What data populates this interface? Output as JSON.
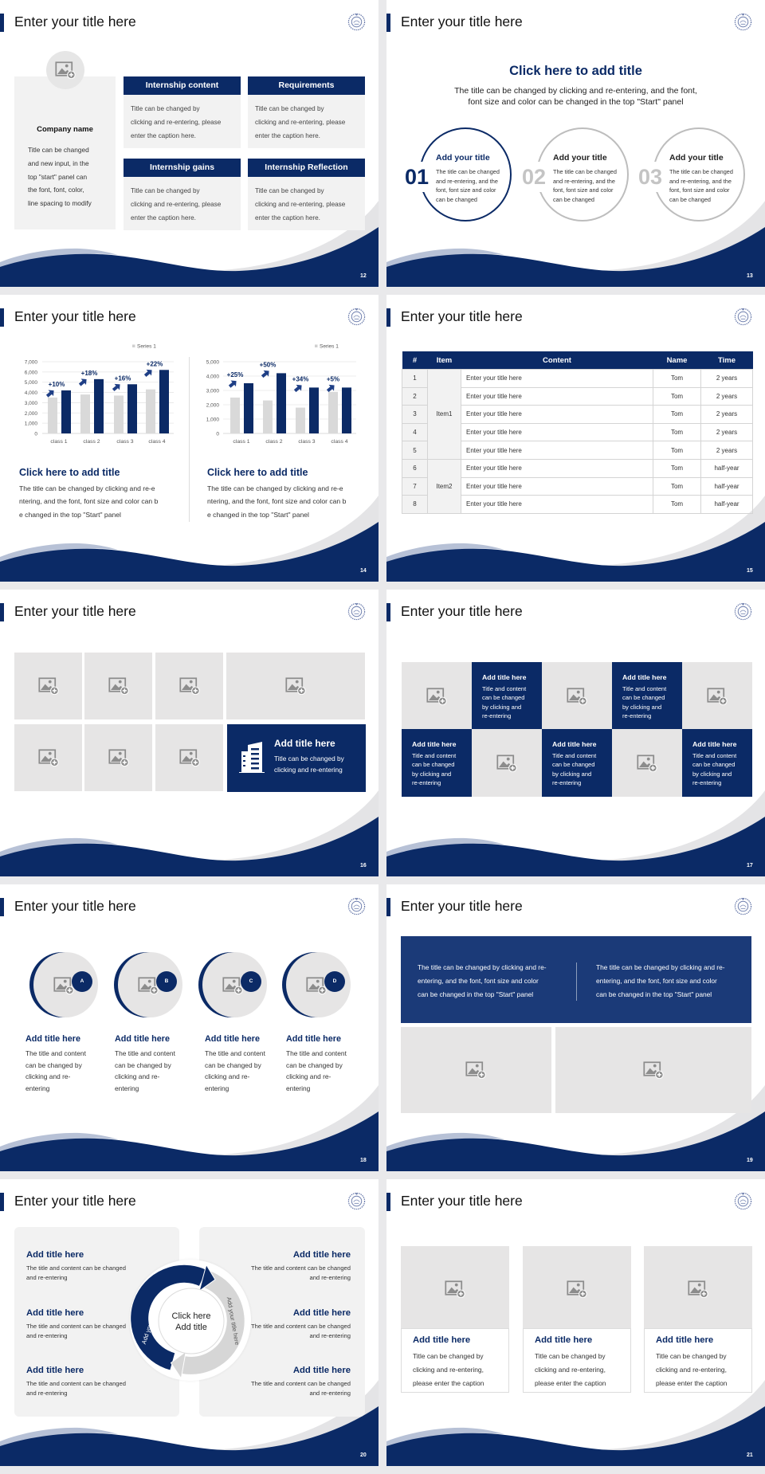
{
  "colors": {
    "navy": "#0b2a66",
    "panel": "#f2f2f2",
    "image_placeholder": "#e6e5e5",
    "band_blue": "#1b3a78",
    "step_gray": "#bdbdbd"
  },
  "icons": {
    "logo": "school-seal-logo",
    "image": "image-add-icon",
    "feature": "building-icon",
    "growth": "arrow-up-right-icon"
  },
  "slides": {
    "s12": {
      "title": "Enter your title here",
      "page": "12",
      "company_name": "Company name",
      "company_body": [
        "Title can be changed",
        "and new input, in the",
        "top \"start\" panel can",
        "the font, font, color,",
        "line spacing to modify"
      ],
      "cards": [
        {
          "header": "Internship content",
          "body": [
            "Title can be changed by",
            "clicking and re-entering, please",
            "enter the caption here."
          ]
        },
        {
          "header": "Requirements",
          "body": [
            "Title can be changed by",
            "clicking and re-entering, please",
            "enter the caption here."
          ]
        },
        {
          "header": "Internship gains",
          "body": [
            "Title can be changed by",
            "clicking and re-entering, please",
            "enter the caption here."
          ]
        },
        {
          "header": "Internship Reflection",
          "body": [
            "Title can be changed by",
            "clicking and re-entering, please",
            "enter the caption here."
          ]
        }
      ]
    },
    "s13": {
      "title": "Enter your title here",
      "page": "13",
      "heading": "Click here to add title",
      "subtitle": [
        "The title can be changed by clicking and re-entering, and the font,",
        "font size and color can be changed in the top \"Start\" panel"
      ],
      "items": [
        {
          "number": "01",
          "title": "Add your title",
          "body": [
            "The title can be changed",
            "and re-entering, and the",
            "font, font size and color",
            "can be changed"
          ]
        },
        {
          "number": "02",
          "title": "Add your title",
          "body": [
            "The title can be changed",
            "and re-entering, and the",
            "font, font size and color",
            "can be changed"
          ]
        },
        {
          "number": "03",
          "title": "Add your title",
          "body": [
            "The title can be changed",
            "and re-entering, and the",
            "font, font size and color",
            "can be changed"
          ]
        }
      ]
    },
    "s14": {
      "title": "Enter your title here",
      "page": "14",
      "panels": [
        {
          "heading": "Click here to add title",
          "body": [
            "The title can be changed by clicking and re-e",
            "ntering, and the font, font size and color can b",
            "e changed in the top \"Start\" panel"
          ]
        },
        {
          "heading": "Click here to add title",
          "body": [
            "The title can be changed by clicking and re-e",
            "ntering, and the font, font size and color can b",
            "e changed in the top \"Start\" panel"
          ]
        }
      ]
    },
    "s15": {
      "title": "Enter your title here",
      "page": "15",
      "table": {
        "headers": [
          "#",
          "Item",
          "Content",
          "Name",
          "Time"
        ],
        "groups": [
          {
            "item": "Item1",
            "rows": [
              {
                "no": "1",
                "content": "Enter your title here",
                "name": "Tom",
                "time": "2 years"
              },
              {
                "no": "2",
                "content": "Enter your title here",
                "name": "Tom",
                "time": "2 years"
              },
              {
                "no": "3",
                "content": "Enter your title here",
                "name": "Tom",
                "time": "2 years"
              },
              {
                "no": "4",
                "content": "Enter your title here",
                "name": "Tom",
                "time": "2 years"
              },
              {
                "no": "5",
                "content": "Enter your title here",
                "name": "Tom",
                "time": "2 years"
              }
            ]
          },
          {
            "item": "Item2",
            "rows": [
              {
                "no": "6",
                "content": "Enter your title here",
                "name": "Tom",
                "time": "half-year"
              },
              {
                "no": "7",
                "content": "Enter your title here",
                "name": "Tom",
                "time": "half-year"
              },
              {
                "no": "8",
                "content": "Enter your title here",
                "name": "Tom",
                "time": "half-year"
              }
            ]
          }
        ]
      }
    },
    "s16": {
      "title": "Enter your title here",
      "page": "16",
      "feature": {
        "title": "Add title here",
        "body": [
          "Title can be changed by",
          "clicking and re-entering"
        ]
      }
    },
    "s17": {
      "title": "Enter your title here",
      "page": "17",
      "cells": [
        {
          "title": "Add title here",
          "body": [
            "Title and content",
            "can be changed",
            "by clicking and",
            "re-entering"
          ]
        },
        {
          "title": "Add title here",
          "body": [
            "Title and content",
            "can be changed",
            "by clicking and",
            "re-entering"
          ]
        },
        {
          "title": "Add title here",
          "body": [
            "Title and content",
            "can be changed",
            "by clicking and",
            "re-entering"
          ]
        },
        {
          "title": "Add title here",
          "body": [
            "Title and content",
            "can be changed",
            "by clicking and",
            "re-entering"
          ]
        },
        {
          "title": "Add title here",
          "body": [
            "Title and content",
            "can be changed",
            "by clicking and",
            "re-entering"
          ]
        }
      ]
    },
    "s18": {
      "title": "Enter your title here",
      "page": "18",
      "items": [
        {
          "badge": "A",
          "title": "Add title here",
          "body": [
            "The title and content",
            "can be changed by",
            "clicking and re-",
            "entering"
          ]
        },
        {
          "badge": "B",
          "title": "Add title here",
          "body": [
            "The title and content",
            "can be changed by",
            "clicking and re-",
            "entering"
          ]
        },
        {
          "badge": "C",
          "title": "Add title here",
          "body": [
            "The title and content",
            "can be changed by",
            "clicking and re-",
            "entering"
          ]
        },
        {
          "badge": "D",
          "title": "Add title here",
          "body": [
            "The title and content",
            "can be changed by",
            "clicking and re-",
            "entering"
          ]
        }
      ]
    },
    "s19": {
      "title": "Enter your title here",
      "page": "19",
      "texts": [
        [
          "The title can be changed by clicking and re-",
          "entering, and the font, font size and color",
          "can be changed in the top \"Start\" panel"
        ],
        [
          "The title can be changed by clicking and re-",
          "entering, and the font, font size and color",
          "can be changed in the top \"Start\" panel"
        ]
      ]
    },
    "s20": {
      "title": "Enter your title here",
      "page": "20",
      "center": [
        "Click here",
        "Add title"
      ],
      "ring_labels": [
        "Add your title here",
        "Add your title here"
      ],
      "items": [
        {
          "title": "Add title here",
          "body": [
            "The title and content can be changed",
            "and re-entering"
          ]
        },
        {
          "title": "Add title here",
          "body": [
            "The title and content can be changed",
            "and re-entering"
          ]
        },
        {
          "title": "Add title here",
          "body": [
            "The title and content can be changed",
            "and re-entering"
          ]
        },
        {
          "title": "Add title here",
          "body": [
            "The title and content can be changed",
            "and re-entering"
          ]
        },
        {
          "title": "Add title here",
          "body": [
            "The title and content can be changed",
            "and re-entering"
          ]
        },
        {
          "title": "Add title here",
          "body": [
            "The title and content can be changed",
            "and re-entering"
          ]
        }
      ]
    },
    "s21": {
      "title": "Enter your title here",
      "page": "21",
      "cards": [
        {
          "title": "Add title here",
          "body": [
            "Title can be changed by",
            "clicking and re-entering,",
            "please enter the caption"
          ]
        },
        {
          "title": "Add title here",
          "body": [
            "Title can be changed by",
            "clicking and re-entering,",
            "please enter the caption"
          ]
        },
        {
          "title": "Add title here",
          "body": [
            "Title can be changed by",
            "clicking and re-entering,",
            "please enter the caption"
          ]
        }
      ]
    }
  },
  "chart_data": [
    {
      "type": "bar",
      "categories": [
        "class 1",
        "class 2",
        "class 3",
        "class 4"
      ],
      "series": [
        {
          "name": "Series 1",
          "values": [
            3500,
            3800,
            3700,
            4300
          ],
          "color": "#d9d9d9"
        },
        {
          "values": [
            4200,
            5300,
            4800,
            6200
          ],
          "color": "#0b2a66"
        }
      ],
      "annotations": [
        "+10%",
        "+18%",
        "+16%",
        "+22%"
      ],
      "ylim": [
        0,
        7000
      ],
      "yticks": [
        0,
        1000,
        2000,
        3000,
        4000,
        5000,
        6000,
        7000
      ],
      "ytick_labels": [
        "0",
        "1,000",
        "2,000",
        "3,000",
        "4,000",
        "5,000",
        "6,000",
        "7,000"
      ],
      "grid": true,
      "legend": "top-right"
    },
    {
      "type": "bar",
      "categories": [
        "class 1",
        "class 2",
        "class 3",
        "class 4"
      ],
      "series": [
        {
          "name": "Series 1",
          "values": [
            2500,
            2300,
            1800,
            2900
          ],
          "color": "#d9d9d9"
        },
        {
          "values": [
            3500,
            4200,
            3200,
            3200
          ],
          "color": "#0b2a66"
        }
      ],
      "annotations": [
        "+25%",
        "+50%",
        "+34%",
        "+5%"
      ],
      "ylim": [
        0,
        5000
      ],
      "yticks": [
        0,
        1000,
        2000,
        3000,
        4000,
        5000
      ],
      "ytick_labels": [
        "0",
        "1,000",
        "2,000",
        "3,000",
        "4,000",
        "5,000"
      ],
      "grid": true,
      "legend": "top-right"
    }
  ]
}
